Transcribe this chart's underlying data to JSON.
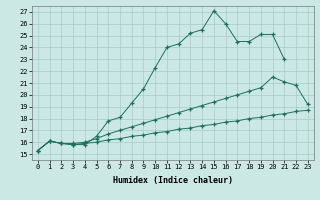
{
  "xlabel": "Humidex (Indice chaleur)",
  "bg_color": "#cce8e4",
  "grid_color": "#a8ccc8",
  "line_color": "#1a7060",
  "xlim": [
    -0.5,
    23.5
  ],
  "ylim": [
    14.5,
    27.5
  ],
  "xticks": [
    0,
    1,
    2,
    3,
    4,
    5,
    6,
    7,
    8,
    9,
    10,
    11,
    12,
    13,
    14,
    15,
    16,
    17,
    18,
    19,
    20,
    21,
    22,
    23
  ],
  "yticks": [
    15,
    16,
    17,
    18,
    19,
    20,
    21,
    22,
    23,
    24,
    25,
    26,
    27
  ],
  "line1_x": [
    0,
    1,
    2,
    3,
    4,
    5,
    6,
    7,
    8,
    9,
    10,
    11,
    12,
    13,
    14,
    15,
    16,
    17,
    18,
    19,
    20,
    21
  ],
  "line1_y": [
    15.3,
    16.1,
    15.9,
    15.8,
    15.8,
    16.5,
    17.8,
    18.1,
    19.3,
    20.5,
    22.3,
    24.0,
    24.3,
    25.2,
    25.5,
    27.1,
    26.0,
    24.5,
    24.5,
    25.1,
    25.1,
    23.0
  ],
  "line2_x": [
    0,
    1,
    2,
    3,
    4,
    5,
    6,
    7,
    8,
    9,
    10,
    11,
    12,
    13,
    14,
    15,
    16,
    17,
    18,
    19,
    20,
    21,
    22,
    23
  ],
  "line2_y": [
    15.3,
    16.1,
    15.9,
    15.9,
    16.0,
    16.3,
    16.7,
    17.0,
    17.3,
    17.6,
    17.9,
    18.2,
    18.5,
    18.8,
    19.1,
    19.4,
    19.7,
    20.0,
    20.3,
    20.6,
    21.5,
    21.1,
    20.8,
    19.2
  ],
  "line3_x": [
    0,
    1,
    2,
    3,
    4,
    5,
    6,
    7,
    8,
    9,
    10,
    11,
    12,
    13,
    14,
    15,
    16,
    17,
    18,
    19,
    20,
    21,
    22,
    23
  ],
  "line3_y": [
    15.3,
    16.1,
    15.9,
    15.8,
    15.9,
    16.0,
    16.2,
    16.3,
    16.5,
    16.6,
    16.8,
    16.9,
    17.1,
    17.2,
    17.4,
    17.5,
    17.7,
    17.8,
    18.0,
    18.1,
    18.3,
    18.4,
    18.6,
    18.7
  ]
}
